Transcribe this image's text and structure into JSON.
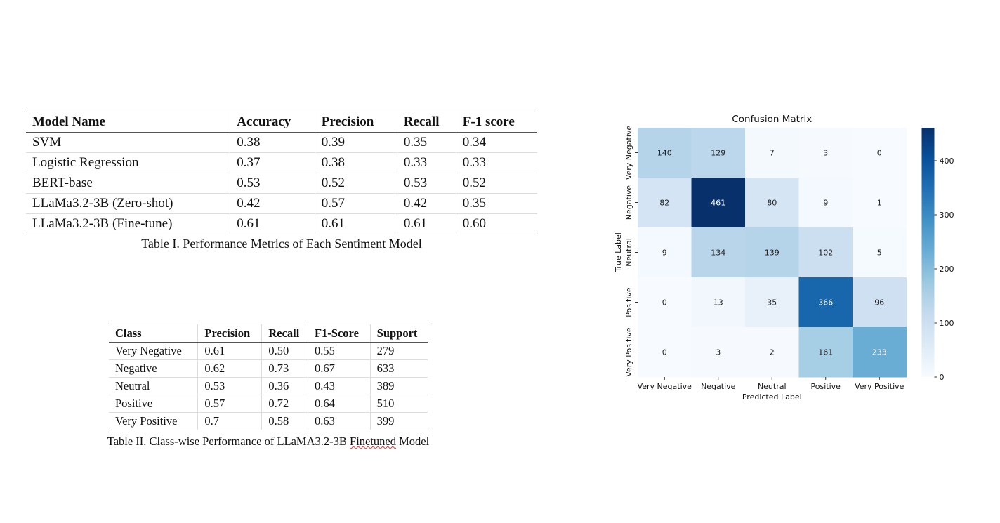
{
  "table1": {
    "columns": [
      "Model Name",
      "Accuracy",
      "Precision",
      "Recall",
      "F-1 score"
    ],
    "rows": [
      [
        "SVM",
        "0.38",
        "0.39",
        "0.35",
        "0.34"
      ],
      [
        "Logistic Regression",
        "0.37",
        "0.38",
        "0.33",
        "0.33"
      ],
      [
        "BERT-base",
        "0.53",
        "0.52",
        "0.53",
        "0.52"
      ],
      [
        "LLaMa3.2-3B (Zero-shot)",
        "0.42",
        "0.57",
        "0.42",
        "0.35"
      ],
      [
        "LLaMa3.2-3B (Fine-tune)",
        "0.61",
        "0.61",
        "0.61",
        "0.60"
      ]
    ],
    "caption": "Table I. Performance Metrics of Each Sentiment Model"
  },
  "table2": {
    "columns": [
      "Class",
      "Precision",
      "Recall",
      "F1-Score",
      "Support"
    ],
    "rows": [
      [
        "Very Negative",
        "0.61",
        "0.50",
        "0.55",
        "279"
      ],
      [
        "Negative",
        "0.62",
        "0.73",
        "0.67",
        "633"
      ],
      [
        "Neutral",
        "0.53",
        "0.36",
        "0.43",
        "389"
      ],
      [
        "Positive",
        "0.57",
        "0.72",
        "0.64",
        "510"
      ],
      [
        "Very Positive",
        "0.7",
        "0.58",
        "0.63",
        "399"
      ]
    ],
    "caption_prefix": "Table II. Class-wise Performance of LLaMA3.2-3B ",
    "caption_word": "Finetuned",
    "caption_suffix": " Model"
  },
  "chart_data": {
    "type": "heatmap",
    "title": "Confusion Matrix",
    "xlabel": "Predicted Label",
    "ylabel": "True Label",
    "x_categories": [
      "Very Negative",
      "Negative",
      "Neutral",
      "Positive",
      "Very Positive"
    ],
    "y_categories": [
      "Very Negative",
      "Negative",
      "Neutral",
      "Positive",
      "Very Positive"
    ],
    "values": [
      [
        140,
        129,
        7,
        3,
        0
      ],
      [
        82,
        461,
        80,
        9,
        1
      ],
      [
        9,
        134,
        139,
        102,
        5
      ],
      [
        0,
        13,
        35,
        366,
        96
      ],
      [
        0,
        3,
        2,
        161,
        233
      ]
    ],
    "colorbar": {
      "min": 0,
      "max": 461,
      "ticks": [
        0,
        100,
        200,
        300,
        400
      ]
    },
    "colormap": [
      "#f7fbff",
      "#deebf7",
      "#c6dbef",
      "#9ecae1",
      "#6baed6",
      "#4292c6",
      "#2171b5",
      "#08519c",
      "#08306b"
    ]
  }
}
